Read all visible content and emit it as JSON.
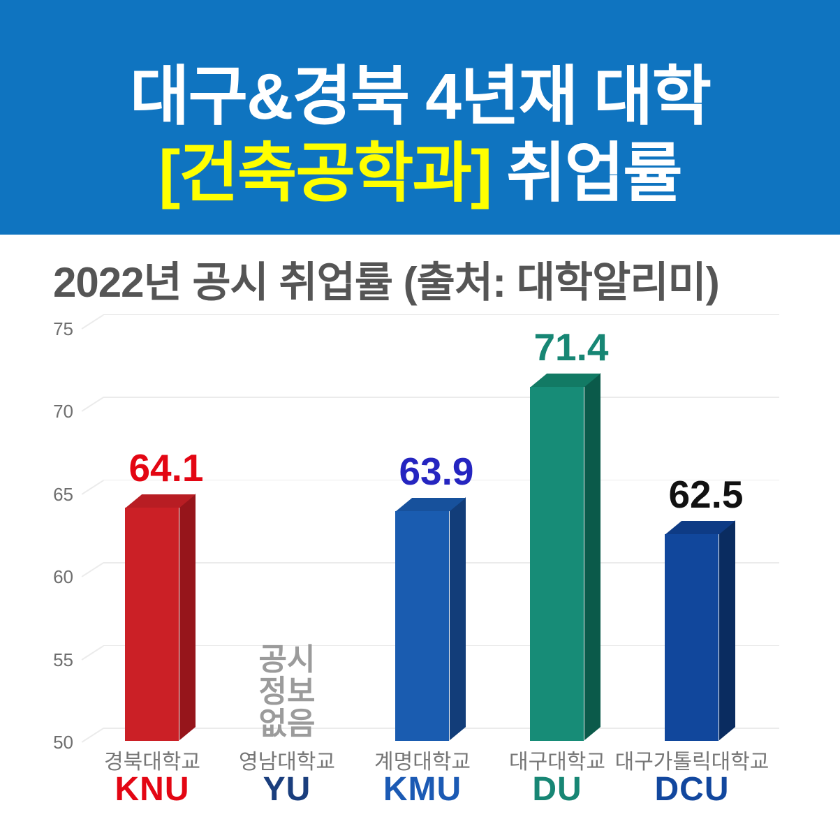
{
  "header": {
    "title_line1": "대구&경북 4년재 대학",
    "title_line2_bracket": "[건축공학과]",
    "title_line2_rest": "취업률",
    "bg_color": "#0f74c0",
    "bracket_color": "#ffff00",
    "text_color": "#ffffff"
  },
  "subtitle": "2022년 공시 취업률 (출처: 대학알리미)",
  "chart_data": {
    "type": "bar",
    "style": "3d-column",
    "title": "2022년 공시 취업률 (출처: 대학알리미)",
    "xlabel": "",
    "ylabel": "",
    "ylim": [
      50,
      75
    ],
    "yticks": [
      75,
      70,
      65,
      60,
      55,
      50
    ],
    "grid": true,
    "legend": "none",
    "categories": [
      "경북대학교",
      "영남대학교",
      "계명대학교",
      "대구대학교",
      "대구가톨릭대학교"
    ],
    "abbrs": [
      "KNU",
      "YU",
      "KMU",
      "DU",
      "DCU"
    ],
    "values": [
      64.1,
      null,
      63.9,
      71.4,
      62.5
    ],
    "no_data_lines": [
      "공시",
      "정보",
      "없음"
    ],
    "no_data_color": "#9b9b9b",
    "bar_colors": [
      {
        "front": "#cb2026",
        "side": "#96151b",
        "top": "#b81d23"
      },
      null,
      {
        "front": "#1a5cb0",
        "side": "#123d79",
        "top": "#17519c"
      },
      {
        "front": "#178c77",
        "side": "#0b5a4a",
        "top": "#127a64"
      },
      {
        "front": "#11479c",
        "side": "#0a2c60",
        "top": "#0e3b85"
      }
    ],
    "value_label_colors": [
      "#e30613",
      null,
      "#2525c0",
      "#178674",
      "#111111"
    ],
    "abbr_colors": [
      "#e30613",
      "#1a3e7d",
      "#1b5ab4",
      "#178674",
      "#12479e"
    ],
    "category_name_color": "#767676",
    "tick_color": "#6e6e6e",
    "grid_color": "#ebebeb"
  }
}
